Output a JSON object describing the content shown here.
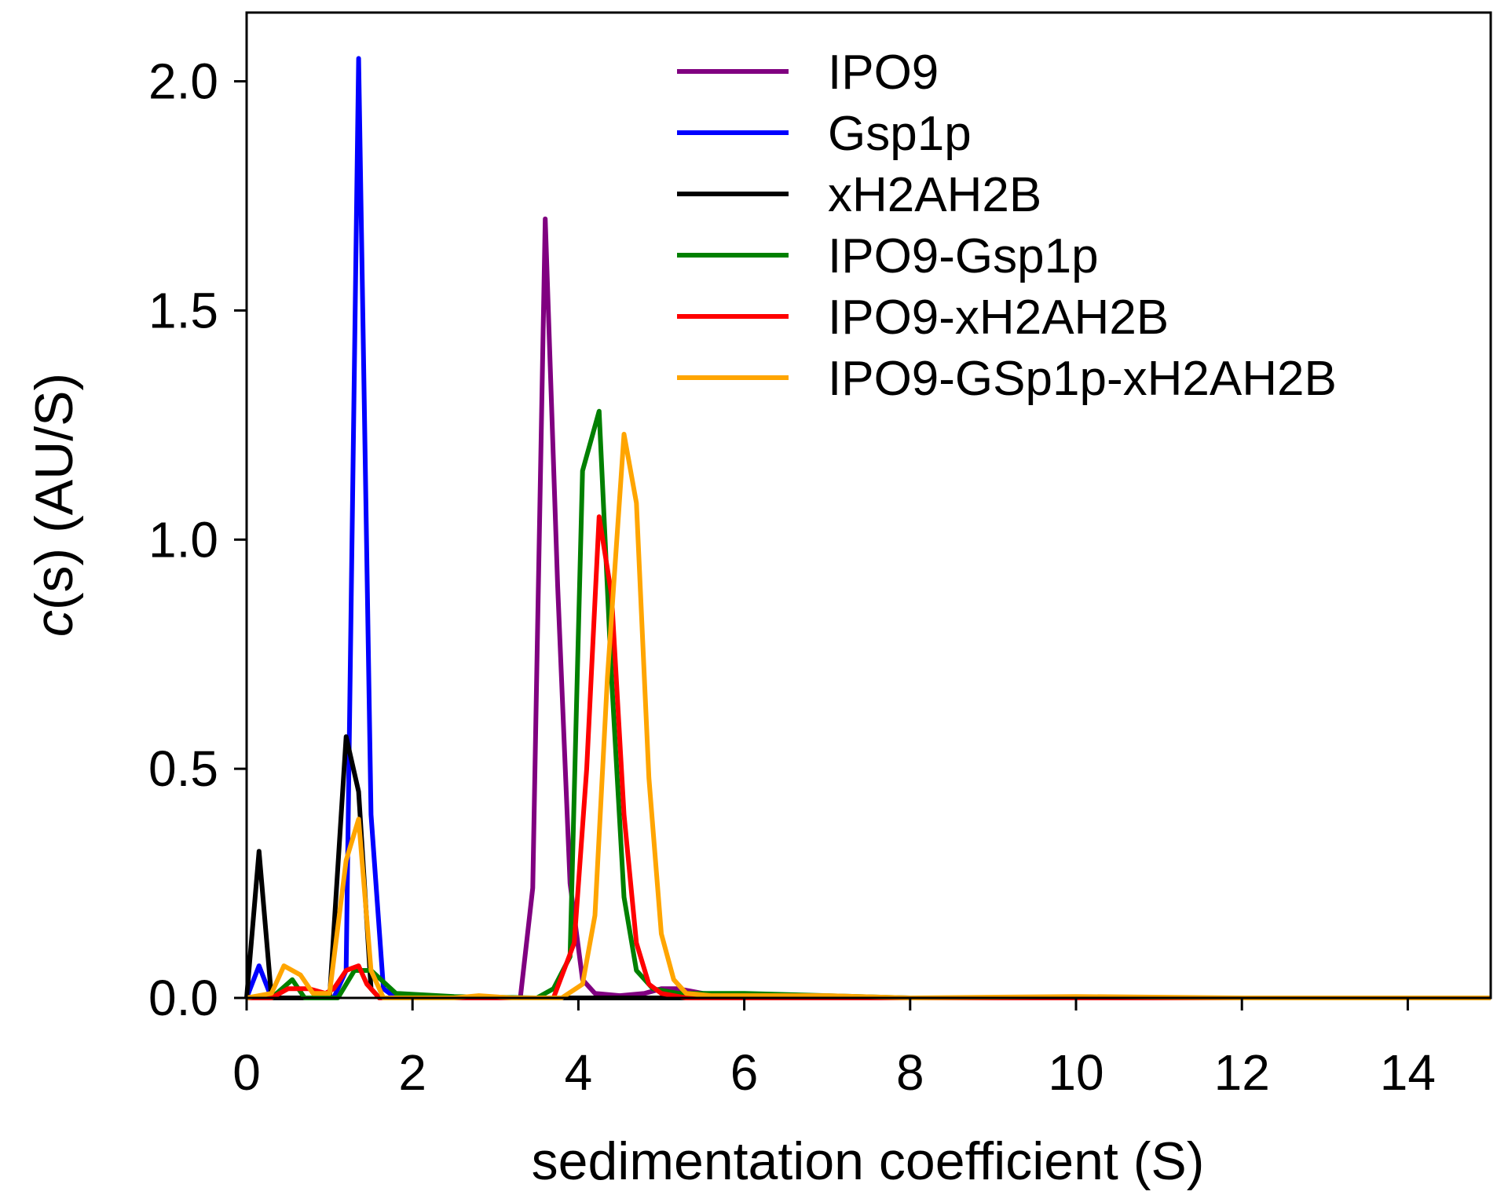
{
  "chart_data": {
    "type": "line",
    "xlabel": "sedimentation coefficient (S)",
    "ylabel_italic": "c",
    "ylabel_rest": "(s) (AU/S)",
    "xlim": [
      0,
      15
    ],
    "ylim": [
      0,
      2.15
    ],
    "xticks": [
      0,
      2,
      4,
      6,
      8,
      10,
      12,
      14
    ],
    "xtick_labels": [
      "0",
      "2",
      "4",
      "6",
      "8",
      "10",
      "12",
      "14"
    ],
    "yticks": [
      0,
      0.5,
      1.0,
      1.5,
      2.0
    ],
    "ytick_labels": [
      "0.0",
      "0.5",
      "1.0",
      "1.5",
      "2.0"
    ],
    "grid": false,
    "legend_position": "top-right",
    "series": [
      {
        "name": "IPO9",
        "color": "#800080",
        "points": [
          [
            3.3,
            0.0
          ],
          [
            3.45,
            0.24
          ],
          [
            3.6,
            1.7
          ],
          [
            3.75,
            0.9
          ],
          [
            3.9,
            0.25
          ],
          [
            4.05,
            0.04
          ],
          [
            4.2,
            0.01
          ],
          [
            4.5,
            0.005
          ],
          [
            4.8,
            0.01
          ],
          [
            5.0,
            0.02
          ],
          [
            5.2,
            0.02
          ],
          [
            5.5,
            0.01
          ],
          [
            6.0,
            0.005
          ],
          [
            7.0,
            0.003
          ],
          [
            8.0,
            0.0
          ],
          [
            15.0,
            0.0
          ]
        ]
      },
      {
        "name": "Gsp1p",
        "color": "#0000ff",
        "points": [
          [
            0.0,
            0.0
          ],
          [
            0.15,
            0.07
          ],
          [
            0.3,
            0.0
          ],
          [
            1.05,
            0.0
          ],
          [
            1.2,
            0.06
          ],
          [
            1.35,
            2.05
          ],
          [
            1.5,
            0.4
          ],
          [
            1.65,
            0.02
          ],
          [
            1.8,
            0.0
          ],
          [
            15.0,
            0.0
          ]
        ]
      },
      {
        "name": "xH2AH2B",
        "color": "#000000",
        "points": [
          [
            0.0,
            0.0
          ],
          [
            0.15,
            0.32
          ],
          [
            0.3,
            0.0
          ],
          [
            1.0,
            0.0
          ],
          [
            1.2,
            0.57
          ],
          [
            1.35,
            0.45
          ],
          [
            1.5,
            0.02
          ],
          [
            1.6,
            0.0
          ],
          [
            15.0,
            0.0
          ]
        ]
      },
      {
        "name": "IPO9-Gsp1p",
        "color": "#008000",
        "points": [
          [
            0.0,
            0.0
          ],
          [
            0.3,
            0.0
          ],
          [
            0.55,
            0.04
          ],
          [
            0.7,
            0.0
          ],
          [
            1.1,
            0.0
          ],
          [
            1.3,
            0.06
          ],
          [
            1.5,
            0.06
          ],
          [
            1.8,
            0.01
          ],
          [
            2.5,
            0.003
          ],
          [
            3.5,
            0.0
          ],
          [
            3.7,
            0.02
          ],
          [
            3.9,
            0.09
          ],
          [
            4.05,
            1.15
          ],
          [
            4.25,
            1.28
          ],
          [
            4.4,
            0.7
          ],
          [
            4.55,
            0.22
          ],
          [
            4.7,
            0.06
          ],
          [
            4.9,
            0.02
          ],
          [
            5.2,
            0.01
          ],
          [
            6.0,
            0.01
          ],
          [
            7.0,
            0.005
          ],
          [
            8.0,
            0.0
          ],
          [
            15.0,
            0.0
          ]
        ]
      },
      {
        "name": "IPO9-xH2AH2B",
        "color": "#ff0000",
        "points": [
          [
            0.0,
            0.0
          ],
          [
            0.3,
            0.0
          ],
          [
            0.5,
            0.02
          ],
          [
            0.75,
            0.02
          ],
          [
            0.95,
            0.01
          ],
          [
            1.05,
            0.02
          ],
          [
            1.2,
            0.06
          ],
          [
            1.35,
            0.07
          ],
          [
            1.45,
            0.03
          ],
          [
            1.6,
            0.0
          ],
          [
            3.7,
            0.0
          ],
          [
            3.95,
            0.12
          ],
          [
            4.1,
            0.5
          ],
          [
            4.25,
            1.05
          ],
          [
            4.4,
            0.88
          ],
          [
            4.55,
            0.4
          ],
          [
            4.7,
            0.12
          ],
          [
            4.85,
            0.03
          ],
          [
            5.0,
            0.01
          ],
          [
            5.3,
            0.0
          ],
          [
            15.0,
            0.0
          ]
        ]
      },
      {
        "name": "IPO9-GSp1p-xH2AH2B",
        "color": "#ffa500",
        "points": [
          [
            0.0,
            0.0
          ],
          [
            0.3,
            0.01
          ],
          [
            0.45,
            0.07
          ],
          [
            0.65,
            0.05
          ],
          [
            0.8,
            0.01
          ],
          [
            1.0,
            0.01
          ],
          [
            1.2,
            0.3
          ],
          [
            1.35,
            0.39
          ],
          [
            1.5,
            0.06
          ],
          [
            1.65,
            0.0
          ],
          [
            2.5,
            0.0
          ],
          [
            2.8,
            0.005
          ],
          [
            3.2,
            0.0
          ],
          [
            3.8,
            0.0
          ],
          [
            4.05,
            0.03
          ],
          [
            4.2,
            0.18
          ],
          [
            4.35,
            0.7
          ],
          [
            4.55,
            1.23
          ],
          [
            4.7,
            1.08
          ],
          [
            4.85,
            0.48
          ],
          [
            5.0,
            0.14
          ],
          [
            5.15,
            0.04
          ],
          [
            5.3,
            0.01
          ],
          [
            5.6,
            0.005
          ],
          [
            6.0,
            0.005
          ],
          [
            7.0,
            0.005
          ],
          [
            8.0,
            0.0
          ],
          [
            10.0,
            0.003
          ],
          [
            12.0,
            0.0
          ],
          [
            15.0,
            0.0
          ]
        ]
      }
    ]
  }
}
